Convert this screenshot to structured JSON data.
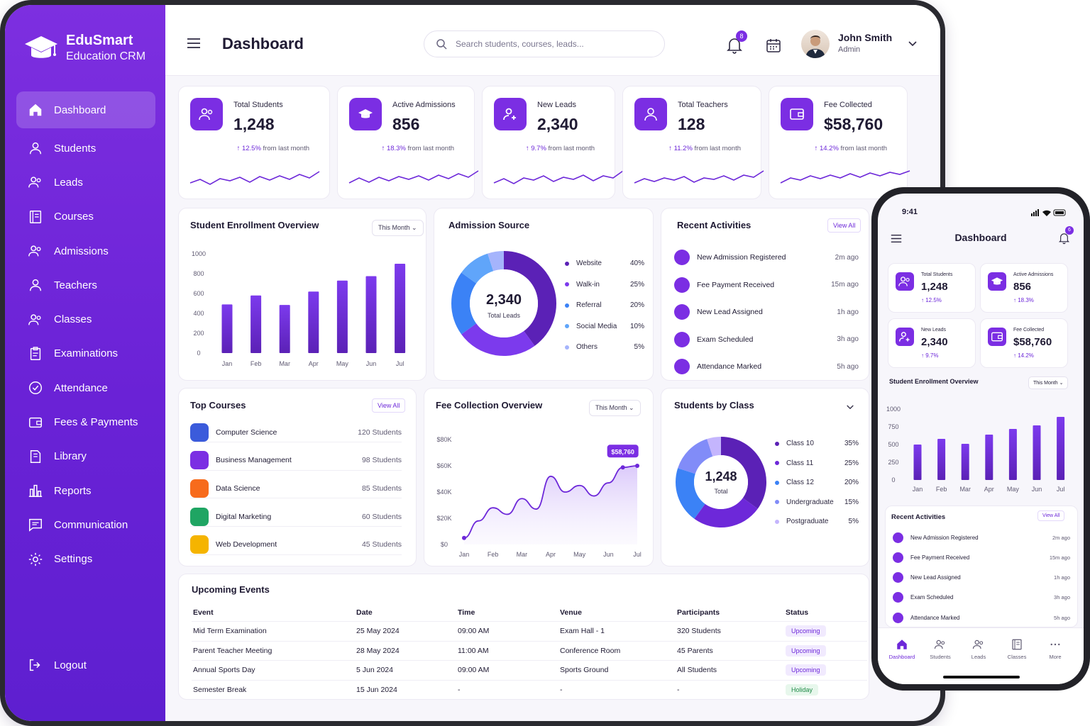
{
  "brand": {
    "name": "EduSmart",
    "subtitle": "Education CRM"
  },
  "colors": {
    "primary": "#7b2ee3",
    "sidebar": "#6a22d6",
    "success": "#1f8a47"
  },
  "sidebar": {
    "items": [
      {
        "label": "Dashboard",
        "icon": "home-icon"
      },
      {
        "label": "Students",
        "icon": "user-icon"
      },
      {
        "label": "Leads",
        "icon": "users-icon"
      },
      {
        "label": "Courses",
        "icon": "book-icon"
      },
      {
        "label": "Admissions",
        "icon": "users-icon"
      },
      {
        "label": "Teachers",
        "icon": "user-icon"
      },
      {
        "label": "Classes",
        "icon": "users-icon"
      },
      {
        "label": "Examinations",
        "icon": "clipboard-icon"
      },
      {
        "label": "Attendance",
        "icon": "check-circle-icon"
      },
      {
        "label": "Fees & Payments",
        "icon": "wallet-icon"
      },
      {
        "label": "Library",
        "icon": "library-icon"
      },
      {
        "label": "Reports",
        "icon": "bar-chart-icon"
      },
      {
        "label": "Communication",
        "icon": "message-icon"
      },
      {
        "label": "Settings",
        "icon": "gear-icon"
      }
    ],
    "logout": "Logout"
  },
  "header": {
    "title": "Dashboard",
    "search_placeholder": "Search students, courses, leads...",
    "notification_count": "8",
    "user_name": "John Smith",
    "user_role": "Admin"
  },
  "stats": [
    {
      "label": "Total Students",
      "value": "1,248",
      "change": "12.5%",
      "suffix": "from last month",
      "icon": "users-icon"
    },
    {
      "label": "Active Admissions",
      "value": "856",
      "change": "18.3%",
      "suffix": "from last month",
      "icon": "graduation-cap-icon"
    },
    {
      "label": "New Leads",
      "value": "2,340",
      "change": "9.7%",
      "suffix": "from last month",
      "icon": "user-plus-icon"
    },
    {
      "label": "Total Teachers",
      "value": "128",
      "change": "11.2%",
      "suffix": "from last month",
      "icon": "user-icon"
    },
    {
      "label": "Fee Collected",
      "value": "$58,760",
      "change": "14.2%",
      "suffix": "from last month",
      "icon": "wallet-icon"
    }
  ],
  "enrollment": {
    "title": "Student Enrollment Overview",
    "filter": "This Month"
  },
  "admission_source": {
    "title": "Admission Source",
    "center_value": "2,340",
    "center_label": "Total Leads"
  },
  "activities": {
    "title": "Recent Activities",
    "view_all": "View All",
    "items": [
      {
        "text": "New Admission Registered",
        "time": "2m ago"
      },
      {
        "text": "Fee Payment Received",
        "time": "15m ago"
      },
      {
        "text": "New Lead Assigned",
        "time": "1h ago"
      },
      {
        "text": "Exam Scheduled",
        "time": "3h ago"
      },
      {
        "text": "Attendance Marked",
        "time": "5h ago"
      }
    ]
  },
  "top_courses": {
    "title": "Top Courses",
    "view_all": "View All",
    "items": [
      {
        "name": "Computer Science",
        "count": "120 Students",
        "color": "#3b5bdb"
      },
      {
        "name": "Business Management",
        "count": "98 Students",
        "color": "#7b2ee3"
      },
      {
        "name": "Data Science",
        "count": "85 Students",
        "color": "#f76b1c"
      },
      {
        "name": "Digital Marketing",
        "count": "60 Students",
        "color": "#1fa563"
      },
      {
        "name": "Web Development",
        "count": "45 Students",
        "color": "#f5b400"
      }
    ]
  },
  "fee_overview": {
    "title": "Fee Collection Overview",
    "filter": "This Month",
    "tooltip": "$58,760"
  },
  "students_by_class": {
    "title": "Students by Class",
    "center_value": "1,248",
    "center_label": "Total"
  },
  "events": {
    "title": "Upcoming Events",
    "columns": [
      "Event",
      "Date",
      "Time",
      "Venue",
      "Participants",
      "Status"
    ],
    "rows": [
      [
        "Mid Term Examination",
        "25 May 2024",
        "09:00 AM",
        "Exam Hall - 1",
        "320 Students",
        "Upcoming"
      ],
      [
        "Parent Teacher Meeting",
        "28 May 2024",
        "11:00 AM",
        "Conference Room",
        "45 Parents",
        "Upcoming"
      ],
      [
        "Annual Sports Day",
        "5 Jun 2024",
        "09:00 AM",
        "Sports Ground",
        "All Students",
        "Upcoming"
      ],
      [
        "Semester Break",
        "15 Jun 2024",
        "-",
        "-",
        "-",
        "Holiday"
      ]
    ]
  },
  "phone": {
    "time": "9:41",
    "title": "Dashboard",
    "notification_count": "6",
    "stats": [
      {
        "label": "Total Students",
        "value": "1,248",
        "change": "12.5%"
      },
      {
        "label": "Active Admissions",
        "value": "856",
        "change": "18.3%"
      },
      {
        "label": "New Leads",
        "value": "2,340",
        "change": "9.7%"
      },
      {
        "label": "Fee Collected",
        "value": "$58,760",
        "change": "14.2%"
      }
    ],
    "enrollment_title": "Student Enrollment Overview",
    "enrollment_filter": "This Month",
    "activities_title": "Recent Activities",
    "view_all": "View All",
    "tabs": [
      "Dashboard",
      "Students",
      "Leads",
      "Classes",
      "More"
    ]
  },
  "chart_data": [
    {
      "type": "bar",
      "title": "Student Enrollment Overview",
      "categories": [
        "Jan",
        "Feb",
        "Mar",
        "Apr",
        "May",
        "Jun",
        "Jul"
      ],
      "values": [
        490,
        580,
        485,
        620,
        730,
        775,
        900
      ],
      "ylim": [
        0,
        1000
      ],
      "yticks": [
        0,
        200,
        400,
        600,
        800,
        1000
      ],
      "grid": false
    },
    {
      "type": "pie",
      "title": "Admission Source",
      "labels": [
        "Website",
        "Walk-in",
        "Referral",
        "Social Media",
        "Others"
      ],
      "values": [
        40,
        25,
        20,
        10,
        5
      ],
      "value_labels": [
        "40%",
        "25%",
        "20%",
        "10%",
        "5%"
      ],
      "colors": [
        "#5b21b6",
        "#7c3aed",
        "#3b82f6",
        "#60a5fa",
        "#a5b4fc"
      ]
    },
    {
      "type": "area",
      "title": "Fee Collection Overview",
      "categories": [
        "Jan",
        "Feb",
        "Mar",
        "Apr",
        "May",
        "Jun",
        "Jul"
      ],
      "x": [
        0,
        0.5,
        1,
        1.5,
        2,
        2.5,
        3,
        3.5,
        4,
        4.5,
        5,
        5.5,
        6
      ],
      "values": [
        5000,
        18000,
        28000,
        23000,
        35000,
        27000,
        52000,
        40000,
        45000,
        37000,
        47000,
        58760,
        60000
      ],
      "ylim": [
        0,
        80000
      ],
      "yticks": [
        "$0",
        "$20K",
        "$40K",
        "$60K",
        "$80K"
      ]
    },
    {
      "type": "pie",
      "title": "Students by Class",
      "labels": [
        "Class 10",
        "Class 11",
        "Class 12",
        "Undergraduate",
        "Postgraduate"
      ],
      "values": [
        35,
        25,
        20,
        15,
        5
      ],
      "value_labels": [
        "35%",
        "25%",
        "20%",
        "15%",
        "5%"
      ],
      "colors": [
        "#5b21b6",
        "#6d28d9",
        "#3b82f6",
        "#818cf8",
        "#c4b5fd"
      ]
    },
    {
      "type": "bar",
      "title": "Student Enrollment Overview",
      "categories": [
        "Jan",
        "Feb",
        "Mar",
        "Apr",
        "May",
        "Jun",
        "Jul"
      ],
      "values": [
        500,
        580,
        510,
        640,
        720,
        770,
        890
      ],
      "ylim": [
        0,
        1000
      ],
      "yticks": [
        0,
        250,
        500,
        750,
        1000
      ]
    }
  ]
}
